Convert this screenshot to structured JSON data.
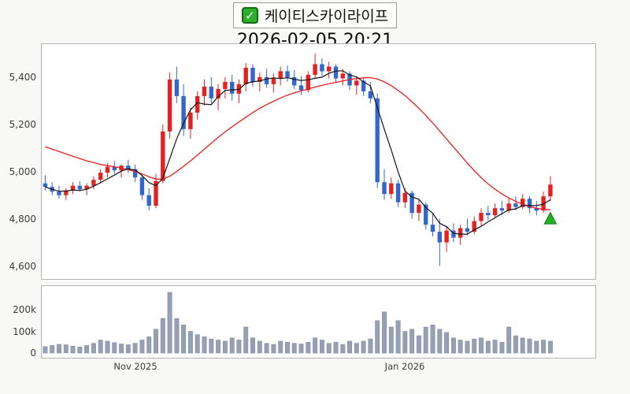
{
  "header": {
    "checkbox_icon": "✓",
    "title": "케이티스카이라이프",
    "datetime": "2026-02-05 20:21"
  },
  "chart_data": {
    "type": "candlestick",
    "title": "케이티스카이라이프",
    "subtitle": "2026-02-05 20:21",
    "slots": 80,
    "candle_fields": [
      "open",
      "high",
      "low",
      "close",
      "volume_k"
    ],
    "candles": [
      [
        4950,
        4985,
        4920,
        4935,
        30
      ],
      [
        4935,
        4955,
        4900,
        4915,
        35
      ],
      [
        4915,
        4940,
        4885,
        4900,
        40
      ],
      [
        4900,
        4930,
        4880,
        4920,
        38
      ],
      [
        4920,
        4955,
        4905,
        4940,
        32
      ],
      [
        4940,
        4960,
        4915,
        4925,
        28
      ],
      [
        4925,
        4950,
        4900,
        4940,
        35
      ],
      [
        4940,
        4980,
        4925,
        4965,
        45
      ],
      [
        4965,
        5010,
        4950,
        4995,
        60
      ],
      [
        4995,
        5035,
        4975,
        5020,
        55
      ],
      [
        5020,
        5045,
        4990,
        5005,
        48
      ],
      [
        5005,
        5030,
        4975,
        5025,
        42
      ],
      [
        5025,
        5050,
        4995,
        5010,
        38
      ],
      [
        5010,
        5030,
        4955,
        4975,
        45
      ],
      [
        4975,
        4990,
        4880,
        4900,
        60
      ],
      [
        4900,
        4930,
        4835,
        4855,
        75
      ],
      [
        4855,
        4990,
        4845,
        4960,
        110
      ],
      [
        4960,
        5200,
        4950,
        5170,
        160
      ],
      [
        5170,
        5420,
        5140,
        5390,
        280
      ],
      [
        5390,
        5445,
        5290,
        5320,
        160
      ],
      [
        5320,
        5370,
        5150,
        5180,
        130
      ],
      [
        5180,
        5270,
        5140,
        5250,
        100
      ],
      [
        5250,
        5340,
        5220,
        5320,
        85
      ],
      [
        5320,
        5390,
        5280,
        5360,
        75
      ],
      [
        5360,
        5400,
        5290,
        5310,
        65
      ],
      [
        5310,
        5370,
        5260,
        5350,
        60
      ],
      [
        5350,
        5400,
        5310,
        5380,
        55
      ],
      [
        5380,
        5410,
        5300,
        5330,
        70
      ],
      [
        5330,
        5390,
        5290,
        5370,
        60
      ],
      [
        5370,
        5460,
        5340,
        5440,
        120
      ],
      [
        5440,
        5455,
        5360,
        5380,
        70
      ],
      [
        5380,
        5420,
        5340,
        5400,
        55
      ],
      [
        5400,
        5435,
        5355,
        5370,
        45
      ],
      [
        5370,
        5415,
        5335,
        5395,
        40
      ],
      [
        5395,
        5445,
        5365,
        5425,
        55
      ],
      [
        5425,
        5450,
        5380,
        5400,
        50
      ],
      [
        5400,
        5430,
        5350,
        5365,
        45
      ],
      [
        5365,
        5405,
        5325,
        5345,
        42
      ],
      [
        5345,
        5425,
        5335,
        5410,
        50
      ],
      [
        5410,
        5500,
        5395,
        5455,
        70
      ],
      [
        5455,
        5480,
        5405,
        5425,
        60
      ],
      [
        5425,
        5465,
        5395,
        5445,
        45
      ],
      [
        5445,
        5455,
        5375,
        5395,
        50
      ],
      [
        5395,
        5435,
        5365,
        5415,
        40
      ],
      [
        5415,
        5425,
        5345,
        5365,
        55
      ],
      [
        5365,
        5405,
        5325,
        5385,
        45
      ],
      [
        5385,
        5400,
        5320,
        5340,
        55
      ],
      [
        5340,
        5380,
        5290,
        5310,
        65
      ],
      [
        5310,
        5330,
        4930,
        4955,
        150
      ],
      [
        4955,
        5010,
        4880,
        4905,
        190
      ],
      [
        4905,
        4975,
        4885,
        4950,
        120
      ],
      [
        4950,
        4965,
        4850,
        4870,
        150
      ],
      [
        4870,
        4930,
        4845,
        4910,
        100
      ],
      [
        4910,
        4920,
        4800,
        4825,
        110
      ],
      [
        4825,
        4880,
        4790,
        4860,
        80
      ],
      [
        4860,
        4870,
        4755,
        4775,
        120
      ],
      [
        4775,
        4820,
        4725,
        4745,
        130
      ],
      [
        4745,
        4800,
        4600,
        4700,
        110
      ],
      [
        4700,
        4770,
        4660,
        4750,
        95
      ],
      [
        4750,
        4780,
        4700,
        4720,
        70
      ],
      [
        4720,
        4775,
        4690,
        4760,
        60
      ],
      [
        4760,
        4800,
        4730,
        4745,
        55
      ],
      [
        4745,
        4810,
        4735,
        4790,
        65
      ],
      [
        4790,
        4845,
        4770,
        4825,
        70
      ],
      [
        4825,
        4855,
        4795,
        4815,
        55
      ],
      [
        4815,
        4865,
        4805,
        4845,
        60
      ],
      [
        4845,
        4875,
        4815,
        4835,
        50
      ],
      [
        4835,
        4885,
        4825,
        4865,
        120
      ],
      [
        4865,
        4895,
        4835,
        4850,
        80
      ],
      [
        4850,
        4905,
        4840,
        4885,
        70
      ],
      [
        4885,
        4895,
        4825,
        4845,
        65
      ],
      [
        4845,
        4875,
        4815,
        4835,
        55
      ],
      [
        4835,
        4915,
        4825,
        4895,
        60
      ],
      [
        4895,
        4980,
        4875,
        4945,
        55
      ]
    ],
    "overlays": {
      "ma_short": {
        "type": "computed",
        "window": 5
      },
      "ma_long": {
        "values": [
          5105,
          5095,
          5085,
          5075,
          5065,
          5055,
          5045,
          5038,
          5030,
          5025,
          5020,
          5015,
          5008,
          5000,
          4990,
          4978,
          4968,
          4968,
          4980,
          5000,
          5022,
          5045,
          5070,
          5095,
          5120,
          5145,
          5168,
          5190,
          5210,
          5230,
          5250,
          5268,
          5284,
          5298,
          5312,
          5324,
          5334,
          5342,
          5350,
          5358,
          5365,
          5372,
          5378,
          5384,
          5390,
          5394,
          5397,
          5398,
          5392,
          5380,
          5364,
          5344,
          5322,
          5296,
          5268,
          5238,
          5206,
          5172,
          5138,
          5104,
          5070,
          5036,
          5004,
          4974,
          4948,
          4925,
          4905,
          4888,
          4874,
          4862,
          4852,
          4845,
          4840,
          4838
        ]
      }
    },
    "marker": {
      "shape": "triangle-up",
      "index": 73,
      "price": 4800
    },
    "price_axis": {
      "ylim": [
        4545,
        5540
      ],
      "ticks": [
        {
          "label": "5,400",
          "value": 5400
        },
        {
          "label": "5,200",
          "value": 5200
        },
        {
          "label": "5,000",
          "value": 5000
        },
        {
          "label": "4,800",
          "value": 4800
        },
        {
          "label": "4,600",
          "value": 4600
        }
      ]
    },
    "volume_axis": {
      "ticks": [
        {
          "label": "200k",
          "value_k": 200
        },
        {
          "label": "100k",
          "value_k": 100
        },
        {
          "label": "0",
          "value_k": 0
        }
      ]
    },
    "x_axis": {
      "ticks": [
        {
          "label": "Nov 2025",
          "index": 13
        },
        {
          "label": "Jan 2026",
          "index": 52
        }
      ]
    },
    "colors": {
      "up": "#e32222",
      "down": "#3366cc",
      "ma_short": "#141414",
      "ma_long": "#e62020",
      "volume_bar": "#96a0b5",
      "volume_edge": "#7e8899",
      "marker_fill": "#1fb41f",
      "marker_edge": "#0e7a0e"
    }
  }
}
